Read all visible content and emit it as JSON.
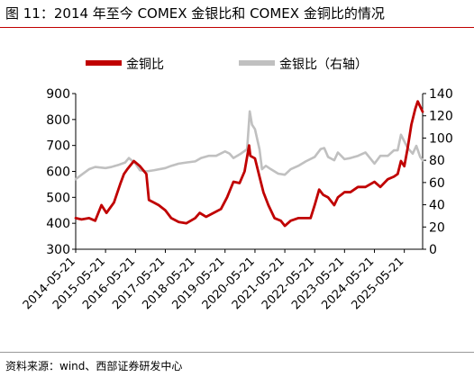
{
  "page": {
    "title": "图 11：2014 年至今 COMEX 金银比和 COMEX 金铜比的情况",
    "source": "资料来源：wind、西部证券研发中心"
  },
  "colors": {
    "copper_series": "#c00000",
    "silver_series": "#c0c0c0"
  },
  "chart_data": {
    "type": "line",
    "title": "",
    "xlabel": "",
    "ylabel": "",
    "y2label": "",
    "x_start": "2014-05-21",
    "x_end": "2025-12-31",
    "xticks": [
      "2014-05-21",
      "2015-05-21",
      "2016-05-21",
      "2017-05-21",
      "2018-05-21",
      "2019-05-21",
      "2020-05-21",
      "2021-05-21",
      "2022-05-21",
      "2023-05-21",
      "2024-05-21",
      "2025-05-21"
    ],
    "ylim": [
      300,
      900
    ],
    "yticks": [
      300,
      400,
      500,
      600,
      700,
      800,
      900
    ],
    "y2lim": [
      0,
      140
    ],
    "y2ticks": [
      0,
      20,
      40,
      60,
      80,
      100,
      120,
      140
    ],
    "grid": false,
    "legend": "top-left",
    "series": [
      {
        "name": "金铜比",
        "axis": "left",
        "points": [
          [
            "2014-05-21",
            420
          ],
          [
            "2014-08-01",
            415
          ],
          [
            "2014-11-01",
            420
          ],
          [
            "2015-01-15",
            410
          ],
          [
            "2015-04-01",
            470
          ],
          [
            "2015-06-01",
            440
          ],
          [
            "2015-09-01",
            480
          ],
          [
            "2015-11-15",
            550
          ],
          [
            "2016-01-01",
            590
          ],
          [
            "2016-02-15",
            610
          ],
          [
            "2016-05-01",
            640
          ],
          [
            "2016-07-15",
            620
          ],
          [
            "2016-10-01",
            590
          ],
          [
            "2016-11-01",
            490
          ],
          [
            "2017-01-01",
            480
          ],
          [
            "2017-03-01",
            470
          ],
          [
            "2017-05-21",
            450
          ],
          [
            "2017-08-01",
            420
          ],
          [
            "2017-11-01",
            405
          ],
          [
            "2018-02-01",
            400
          ],
          [
            "2018-05-21",
            420
          ],
          [
            "2018-07-15",
            440
          ],
          [
            "2018-10-01",
            425
          ],
          [
            "2019-01-01",
            440
          ],
          [
            "2019-04-01",
            455
          ],
          [
            "2019-06-15",
            500
          ],
          [
            "2019-09-01",
            560
          ],
          [
            "2019-11-15",
            555
          ],
          [
            "2020-01-15",
            600
          ],
          [
            "2020-03-10",
            700
          ],
          [
            "2020-03-25",
            660
          ],
          [
            "2020-05-21",
            650
          ],
          [
            "2020-07-15",
            580
          ],
          [
            "2020-09-01",
            520
          ],
          [
            "2020-11-01",
            470
          ],
          [
            "2021-01-15",
            420
          ],
          [
            "2021-04-01",
            410
          ],
          [
            "2021-05-21",
            390
          ],
          [
            "2021-08-01",
            410
          ],
          [
            "2021-11-01",
            420
          ],
          [
            "2022-02-01",
            420
          ],
          [
            "2022-04-01",
            420
          ],
          [
            "2022-05-21",
            470
          ],
          [
            "2022-07-15",
            530
          ],
          [
            "2022-09-01",
            510
          ],
          [
            "2022-11-01",
            500
          ],
          [
            "2023-01-15",
            470
          ],
          [
            "2023-03-01",
            500
          ],
          [
            "2023-05-21",
            520
          ],
          [
            "2023-08-01",
            520
          ],
          [
            "2023-11-01",
            540
          ],
          [
            "2024-02-01",
            540
          ],
          [
            "2024-05-21",
            560
          ],
          [
            "2024-08-01",
            540
          ],
          [
            "2024-11-01",
            570
          ],
          [
            "2025-01-15",
            580
          ],
          [
            "2025-03-01",
            590
          ],
          [
            "2025-04-10",
            640
          ],
          [
            "2025-05-21",
            620
          ],
          [
            "2025-07-01",
            690
          ],
          [
            "2025-08-15",
            780
          ],
          [
            "2025-10-01",
            840
          ],
          [
            "2025-11-01",
            870
          ],
          [
            "2025-12-31",
            830
          ]
        ]
      },
      {
        "name": "金银比（右轴）",
        "axis": "right",
        "points": [
          [
            "2014-05-21",
            63
          ],
          [
            "2014-08-01",
            67
          ],
          [
            "2014-11-01",
            72
          ],
          [
            "2015-01-15",
            74
          ],
          [
            "2015-05-21",
            73
          ],
          [
            "2015-08-01",
            74
          ],
          [
            "2015-11-01",
            76
          ],
          [
            "2016-01-15",
            78
          ],
          [
            "2016-03-01",
            82
          ],
          [
            "2016-05-21",
            77
          ],
          [
            "2016-07-15",
            71
          ],
          [
            "2016-10-01",
            70
          ],
          [
            "2017-01-01",
            71
          ],
          [
            "2017-05-21",
            73
          ],
          [
            "2017-08-01",
            75
          ],
          [
            "2017-11-01",
            77
          ],
          [
            "2018-02-01",
            78
          ],
          [
            "2018-05-21",
            79
          ],
          [
            "2018-08-01",
            82
          ],
          [
            "2018-11-01",
            84
          ],
          [
            "2019-02-01",
            84
          ],
          [
            "2019-05-21",
            88
          ],
          [
            "2019-07-15",
            86
          ],
          [
            "2019-09-01",
            82
          ],
          [
            "2019-12-01",
            86
          ],
          [
            "2020-02-15",
            90
          ],
          [
            "2020-03-18",
            124
          ],
          [
            "2020-04-15",
            112
          ],
          [
            "2020-05-21",
            108
          ],
          [
            "2020-07-15",
            90
          ],
          [
            "2020-08-15",
            72
          ],
          [
            "2020-10-01",
            75
          ],
          [
            "2020-12-01",
            72
          ],
          [
            "2021-03-01",
            68
          ],
          [
            "2021-05-21",
            67
          ],
          [
            "2021-08-01",
            72
          ],
          [
            "2021-11-01",
            75
          ],
          [
            "2022-02-01",
            79
          ],
          [
            "2022-05-21",
            83
          ],
          [
            "2022-08-01",
            90
          ],
          [
            "2022-09-15",
            91
          ],
          [
            "2022-11-01",
            83
          ],
          [
            "2023-01-15",
            80
          ],
          [
            "2023-03-01",
            87
          ],
          [
            "2023-05-21",
            81
          ],
          [
            "2023-08-01",
            82
          ],
          [
            "2023-11-01",
            84
          ],
          [
            "2024-02-01",
            87
          ],
          [
            "2024-05-21",
            77
          ],
          [
            "2024-08-01",
            84
          ],
          [
            "2024-11-01",
            84
          ],
          [
            "2025-01-15",
            89
          ],
          [
            "2025-03-01",
            89
          ],
          [
            "2025-04-10",
            103
          ],
          [
            "2025-05-21",
            97
          ],
          [
            "2025-07-01",
            91
          ],
          [
            "2025-09-01",
            86
          ],
          [
            "2025-10-15",
            93
          ],
          [
            "2025-12-01",
            83
          ],
          [
            "2025-12-31",
            80
          ]
        ]
      }
    ]
  }
}
